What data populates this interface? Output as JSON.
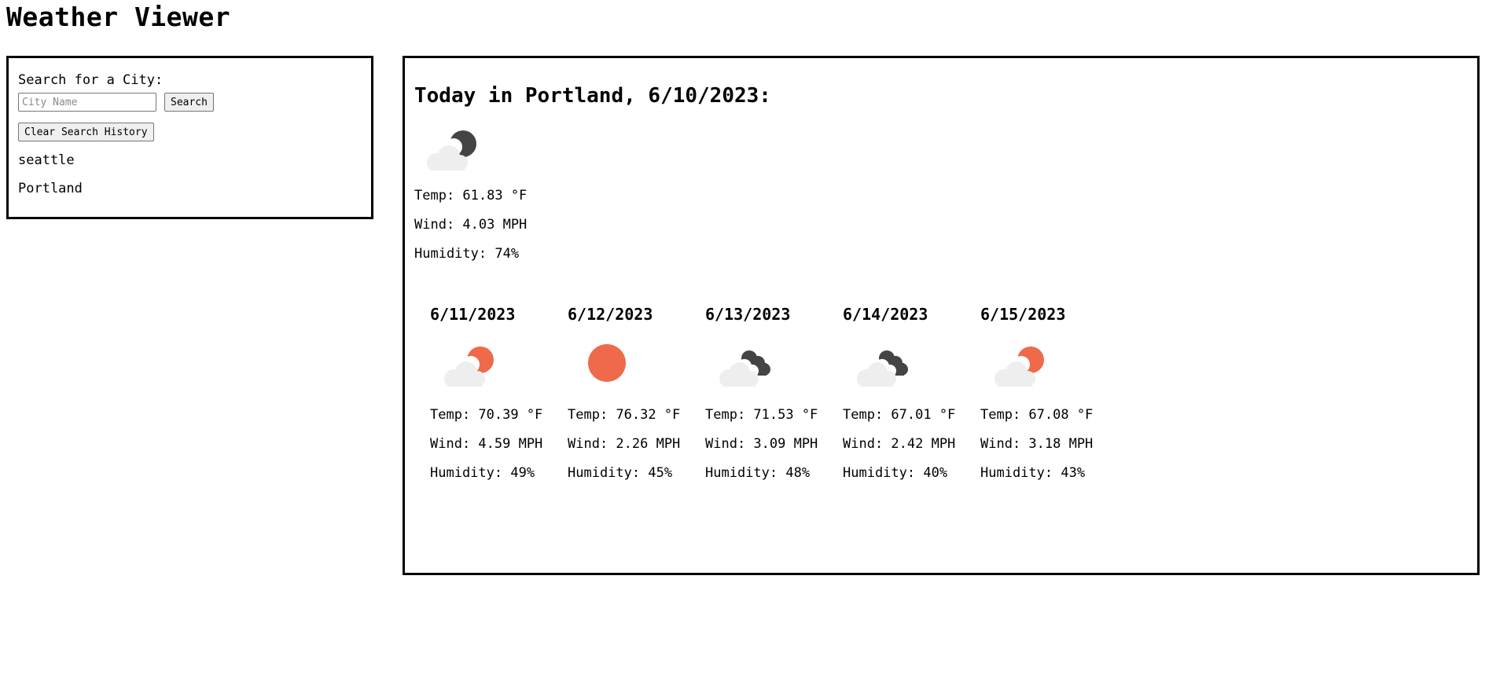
{
  "page": {
    "title": "Weather Viewer"
  },
  "search": {
    "label": "Search for a City:",
    "placeholder": "City Name",
    "search_button": "Search",
    "clear_button": "Clear Search History",
    "history": [
      "seattle",
      "Portland"
    ]
  },
  "today": {
    "title": "Today in Portland, 6/10/2023:",
    "icon": "cloud-moon-icon",
    "temp": "Temp: 61.83 °F",
    "wind": "Wind: 4.03 MPH",
    "humidity": "Humidity: 74%"
  },
  "colors": {
    "sun": "#ef6a4a",
    "moon": "#444444",
    "cloud": "#eeeeee"
  },
  "forecast": [
    {
      "date": "6/11/2023",
      "icon": "cloud-sun-icon",
      "temp": "Temp: 70.39 °F",
      "wind": "Wind: 4.59 MPH",
      "humidity": "Humidity: 49%"
    },
    {
      "date": "6/12/2023",
      "icon": "sun-icon",
      "temp": "Temp: 76.32 °F",
      "wind": "Wind: 2.26 MPH",
      "humidity": "Humidity: 45%"
    },
    {
      "date": "6/13/2023",
      "icon": "clouds-icon",
      "temp": "Temp: 71.53 °F",
      "wind": "Wind: 3.09 MPH",
      "humidity": "Humidity: 48%"
    },
    {
      "date": "6/14/2023",
      "icon": "clouds-icon",
      "temp": "Temp: 67.01 °F",
      "wind": "Wind: 2.42 MPH",
      "humidity": "Humidity: 40%"
    },
    {
      "date": "6/15/2023",
      "icon": "cloud-sun-icon",
      "temp": "Temp: 67.08 °F",
      "wind": "Wind: 3.18 MPH",
      "humidity": "Humidity: 43%"
    }
  ]
}
